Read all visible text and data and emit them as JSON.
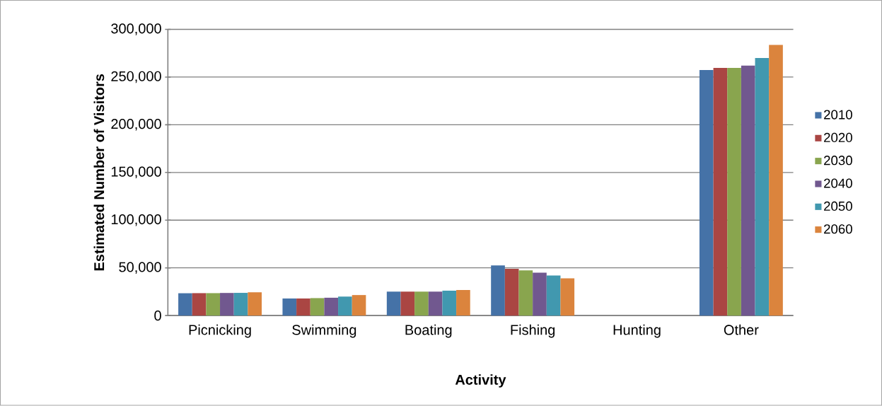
{
  "chart_data": {
    "type": "bar",
    "xlabel": "Activity",
    "ylabel": "Estimated Number of Visitors",
    "categories": [
      "Picnicking",
      "Swimming",
      "Boating",
      "Fishing",
      "Hunting",
      "Other"
    ],
    "series": [
      {
        "name": "2010",
        "color": "#4572a7",
        "values": [
          23400,
          17900,
          25100,
          52500,
          0,
          257300
        ]
      },
      {
        "name": "2020",
        "color": "#aa4643",
        "values": [
          23500,
          17900,
          25100,
          49100,
          0,
          259500
        ]
      },
      {
        "name": "2030",
        "color": "#89a54e",
        "values": [
          23500,
          18300,
          25100,
          47300,
          0,
          259500
        ]
      },
      {
        "name": "2040",
        "color": "#71588f",
        "values": [
          23700,
          18700,
          25100,
          45000,
          0,
          262000
        ]
      },
      {
        "name": "2050",
        "color": "#4198af",
        "values": [
          23800,
          19900,
          26100,
          42000,
          0,
          270000
        ]
      },
      {
        "name": "2060",
        "color": "#db843d",
        "values": [
          24400,
          21500,
          26800,
          39000,
          0,
          283700
        ]
      }
    ],
    "ylim": [
      0,
      300000
    ],
    "yticks": [
      {
        "value": 0,
        "label": "0"
      },
      {
        "value": 50000,
        "label": "50,000"
      },
      {
        "value": 100000,
        "label": "100,000"
      },
      {
        "value": 150000,
        "label": "150,000"
      },
      {
        "value": 200000,
        "label": "200,000"
      },
      {
        "value": 250000,
        "label": "250,000"
      },
      {
        "value": 300000,
        "label": "300,000"
      }
    ],
    "grid": "y",
    "legend": "right"
  }
}
